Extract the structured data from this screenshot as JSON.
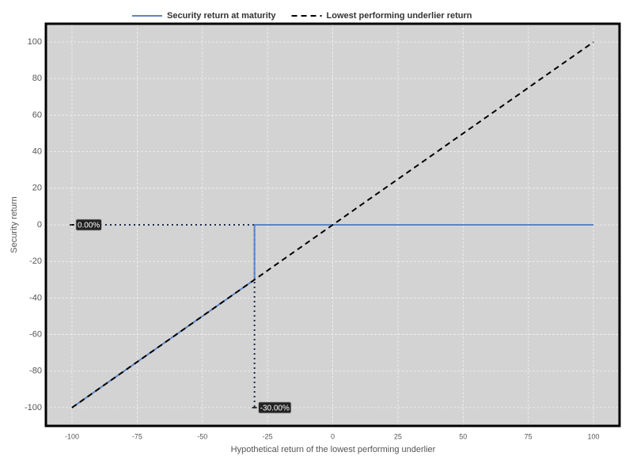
{
  "chart_data": {
    "type": "line",
    "x_label": "Hypothetical return of the lowest performing underlier",
    "y_label": "Security return",
    "xlim": [
      -110,
      110
    ],
    "ylim": [
      -110,
      110
    ],
    "xticks": [
      -100,
      -75,
      -50,
      -25,
      0,
      25,
      50,
      75,
      100
    ],
    "yticks": [
      -100,
      -80,
      -60,
      -40,
      -20,
      0,
      20,
      40,
      60,
      80,
      100
    ],
    "grid": true,
    "legend": "top",
    "series": [
      {
        "name": "Security return at maturity",
        "color": "#5b84c4",
        "style": "solid",
        "x": [
          -100,
          -30,
          -30,
          100
        ],
        "values": [
          -100,
          -30,
          0,
          0
        ]
      },
      {
        "name": "Lowest performing underlier return",
        "color": "#000000",
        "style": "dashed",
        "x": [
          -100,
          100
        ],
        "values": [
          -100,
          100
        ]
      }
    ],
    "reference_lines": [
      {
        "x": [
          -100,
          -30
        ],
        "values": [
          0,
          0
        ]
      },
      {
        "x": [
          -30,
          -30
        ],
        "values": [
          0,
          -100
        ]
      }
    ],
    "annotations": [
      {
        "label": "0.00%",
        "x": -100,
        "y": 0
      },
      {
        "label": "-30.00%",
        "x": -30,
        "y": -100
      }
    ]
  }
}
